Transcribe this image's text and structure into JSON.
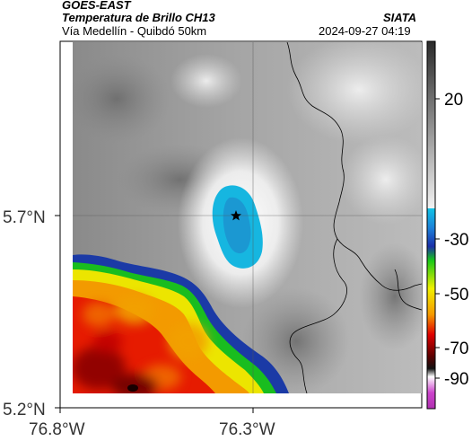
{
  "header": {
    "satellite": "GOES-EAST",
    "product": "Temperatura de Brillo CH13",
    "agency": "SIATA",
    "region": "Vía Medellín - Quibdó 50km",
    "timestamp": "2024-09-27 04:19"
  },
  "map": {
    "lat_ticks": [
      "5.7°N",
      "5.2°N"
    ],
    "lon_ticks": [
      "76.8°W",
      "76.3°W"
    ],
    "marker_icon": "star-icon"
  },
  "colorbar": {
    "labels": [
      "20",
      "-30",
      "-50",
      "-70",
      "-90"
    ],
    "colors": {
      "warm_gray_top": "#2a2a2a",
      "warm_gray_bottom": "#f2f2f2",
      "cyan": "#11c3e6",
      "blue": "#1a2ea8",
      "green": "#18c818",
      "yellow": "#f0f000",
      "orange": "#f59a00",
      "red": "#e00000",
      "darkred": "#5a0000",
      "magenta": "#cc44cc"
    }
  }
}
